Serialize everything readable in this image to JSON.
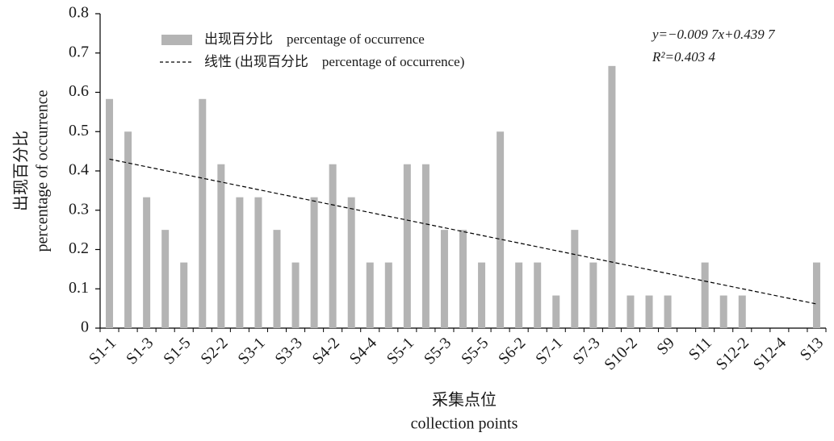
{
  "chart_data": {
    "type": "bar",
    "categories": [
      "S1-1",
      null,
      "S1-3",
      null,
      "S1-5",
      null,
      "S2-2",
      null,
      "S3-1",
      null,
      "S3-3",
      null,
      "S4-2",
      null,
      "S4-4",
      null,
      "S5-1",
      null,
      "S5-3",
      null,
      "S5-5",
      null,
      "S6-2",
      null,
      "S7-1",
      null,
      "S7-3",
      null,
      "S10-2",
      null,
      "S9",
      null,
      "S11",
      null,
      "S12-2",
      null,
      "S12-4",
      null,
      "S13"
    ],
    "series": [
      {
        "name": "出现百分比    percentage of occurrence",
        "color": "#b4b4b4",
        "values": [
          0.583,
          0.5,
          0.333,
          0.25,
          0.167,
          0.583,
          0.417,
          0.333,
          0.333,
          0.25,
          0.167,
          0.333,
          0.417,
          0.333,
          0.167,
          0.167,
          0.417,
          0.417,
          0.25,
          0.25,
          0.167,
          0.5,
          0.167,
          0.167,
          0.083,
          0.25,
          0.167,
          0.667,
          0.083,
          0.083,
          0.083,
          0,
          0.167,
          0.083,
          0.083,
          0,
          0,
          0,
          0.167
        ]
      }
    ],
    "trendline": {
      "name": "线性 (出现百分比    percentage of occurrence)",
      "slope": -0.0097,
      "intercept": 0.4397,
      "color": "#000000"
    },
    "annotations": [
      "y=−0.009 7x+0.439 7",
      "R²=0.403 4"
    ],
    "ylabel": [
      "出现百分比",
      "percentage of occurrence"
    ],
    "xlabel": [
      "采集点位",
      "collection points"
    ],
    "ylim": [
      0,
      0.8
    ],
    "yticks": [
      0,
      0.1,
      0.2,
      0.3,
      0.4,
      0.5,
      0.6,
      0.7,
      0.8
    ]
  }
}
